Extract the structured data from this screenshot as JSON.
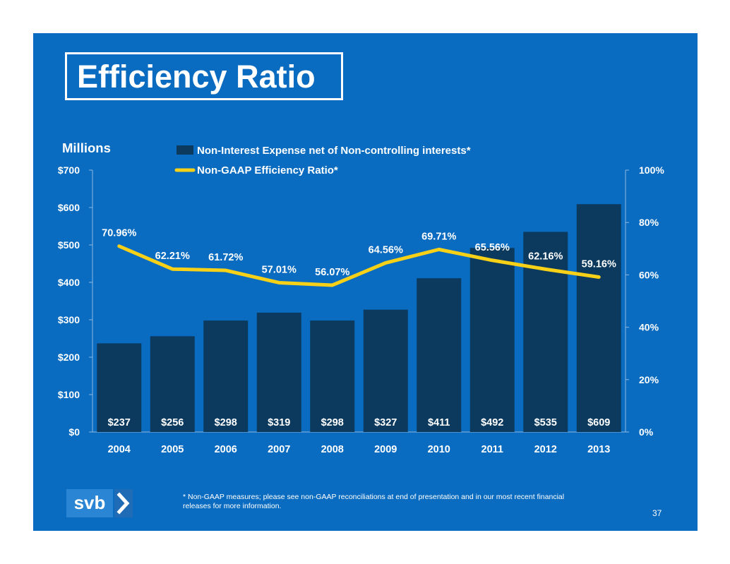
{
  "title": "Efficiency Ratio",
  "footnote": "* Non-GAAP measures; please see non-GAAP reconciliations at end of presentation and in our most recent financial releases for more information.",
  "page_number": "37",
  "logo": {
    "text": "svb",
    "icon": "chevron-right-icon"
  },
  "colors": {
    "background": "#0a6cc0",
    "bars": "#0b3a5e",
    "line": "#f7d117",
    "text": "#ffffff"
  },
  "chart_data": {
    "type": "bar",
    "unit_label": "Millions",
    "categories": [
      "2004",
      "2005",
      "2006",
      "2007",
      "2008",
      "2009",
      "2010",
      "2011",
      "2012",
      "2013"
    ],
    "series": [
      {
        "name": "Non-Interest Expense net of Non-controlling interests*",
        "type": "bar",
        "axis": "left",
        "values": [
          237,
          256,
          298,
          319,
          298,
          327,
          411,
          492,
          535,
          609
        ],
        "labels": [
          "$237",
          "$256",
          "$298",
          "$319",
          "$298",
          "$327",
          "$411",
          "$492",
          "$535",
          "$609"
        ]
      },
      {
        "name": "Non-GAAP Efficiency Ratio*",
        "type": "line",
        "axis": "right",
        "values": [
          70.96,
          62.21,
          61.72,
          57.01,
          56.07,
          64.56,
          69.71,
          65.56,
          62.16,
          59.16
        ],
        "labels": [
          "70.96%",
          "62.21%",
          "61.72%",
          "57.01%",
          "56.07%",
          "64.56%",
          "69.71%",
          "65.56%",
          "62.16%",
          "59.16%"
        ]
      }
    ],
    "y_left": {
      "lim": [
        0,
        700
      ],
      "ticks": [
        0,
        100,
        200,
        300,
        400,
        500,
        600,
        700
      ],
      "tick_labels": [
        "$0",
        "$100",
        "$200",
        "$300",
        "$400",
        "$500",
        "$600",
        "$700"
      ]
    },
    "y_right": {
      "lim": [
        0,
        100
      ],
      "ticks": [
        0,
        20,
        40,
        60,
        80,
        100
      ],
      "tick_labels": [
        "0%",
        "20%",
        "40%",
        "60%",
        "80%",
        "100%"
      ]
    },
    "grid": false,
    "legend_position": "top"
  }
}
